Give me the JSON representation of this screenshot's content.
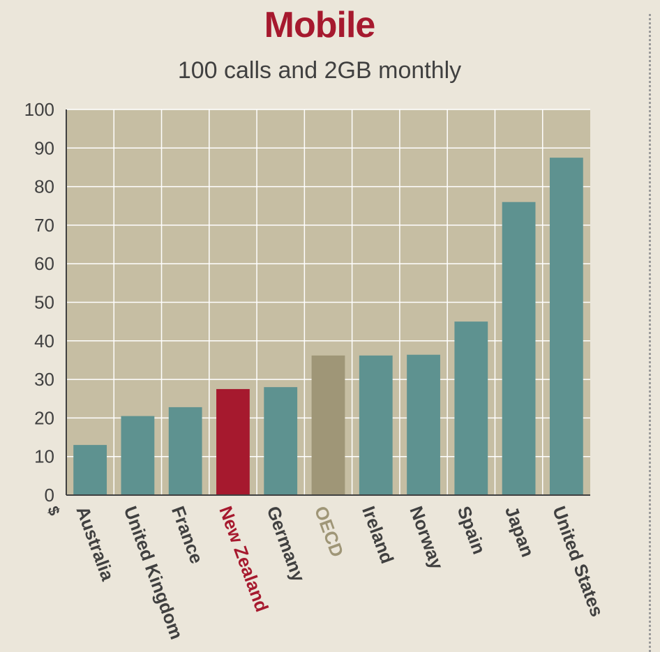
{
  "chart_data": {
    "type": "bar",
    "title": "Mobile",
    "subtitle": "100 calls and 2GB monthly",
    "ylabel": "$",
    "xlabel": "",
    "ylim": [
      0,
      100
    ],
    "yticks": [
      0,
      10,
      20,
      30,
      40,
      50,
      60,
      70,
      80,
      90,
      100
    ],
    "grid": true,
    "categories": [
      "Australia",
      "United Kingdom",
      "France",
      "New Zealand",
      "Germany",
      "OECD",
      "Ireland",
      "Norway",
      "Spain",
      "Japan",
      "United States"
    ],
    "values": [
      13,
      20.5,
      22.8,
      27.5,
      28,
      36.2,
      36.2,
      36.4,
      45,
      76,
      87.5
    ],
    "colors": {
      "default_bar": "#5e9290",
      "highlight_bar": "#a6192e",
      "oecd_bar": "#9f9677",
      "plot_background": "#c6bea3",
      "highlight_label": "#a6192e",
      "oecd_label": "#9f9677",
      "default_label": "#404040"
    },
    "highlights": {
      "New Zealand": "highlight",
      "OECD": "oecd"
    }
  }
}
